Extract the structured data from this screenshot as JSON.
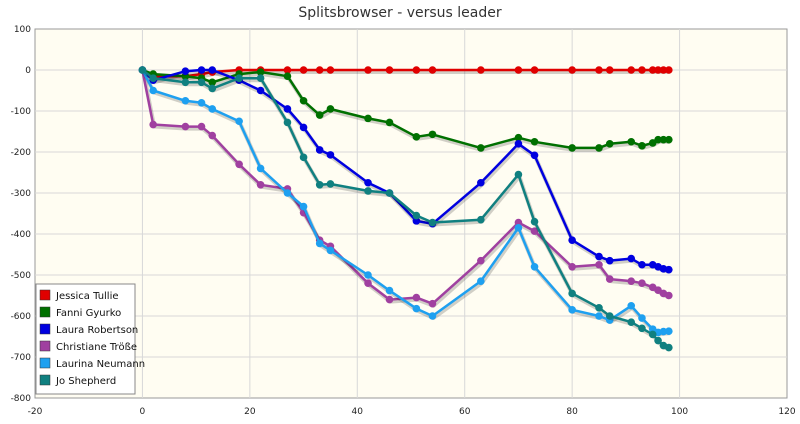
{
  "chart_data": {
    "type": "line",
    "title": "Splitsbrowser - versus leader",
    "xlabel": "",
    "ylabel": "",
    "xlim": [
      -20,
      120
    ],
    "ylim": [
      -800,
      100
    ],
    "x_ticks": [
      "-20",
      "0",
      "20",
      "40",
      "60",
      "80",
      "100",
      "120"
    ],
    "y_ticks": [
      "100",
      "0",
      "-100",
      "-200",
      "-300",
      "-400",
      "-500",
      "-600",
      "-700",
      "-800"
    ],
    "grid": true,
    "legend_position": "bottom-left",
    "series": [
      {
        "name": "Jessica Tullie",
        "color": "#e00000",
        "points": [
          [
            0,
            0
          ],
          [
            2,
            -15
          ],
          [
            8,
            -15
          ],
          [
            11,
            -10
          ],
          [
            13,
            -5
          ],
          [
            18,
            0
          ],
          [
            22,
            0
          ],
          [
            27,
            0
          ],
          [
            30,
            0
          ],
          [
            33,
            0
          ],
          [
            35,
            0
          ],
          [
            42,
            0
          ],
          [
            46,
            0
          ],
          [
            51,
            0
          ],
          [
            54,
            0
          ],
          [
            63,
            0
          ],
          [
            70,
            0
          ],
          [
            73,
            0
          ],
          [
            80,
            0
          ],
          [
            85,
            0
          ],
          [
            87,
            0
          ],
          [
            91,
            0
          ],
          [
            93,
            0
          ],
          [
            95,
            0
          ],
          [
            96,
            0
          ],
          [
            97,
            0
          ],
          [
            98,
            0
          ]
        ]
      },
      {
        "name": "Fanni Gyurko",
        "color": "#007000",
        "points": [
          [
            0,
            0
          ],
          [
            2,
            -10
          ],
          [
            8,
            -15
          ],
          [
            11,
            -20
          ],
          [
            13,
            -30
          ],
          [
            18,
            -10
          ],
          [
            22,
            -5
          ],
          [
            27,
            -15
          ],
          [
            30,
            -75
          ],
          [
            33,
            -110
          ],
          [
            35,
            -95
          ],
          [
            42,
            -118
          ],
          [
            46,
            -128
          ],
          [
            51,
            -163
          ],
          [
            54,
            -157
          ],
          [
            63,
            -190
          ],
          [
            70,
            -165
          ],
          [
            73,
            -175
          ],
          [
            80,
            -190
          ],
          [
            85,
            -190
          ],
          [
            87,
            -180
          ],
          [
            91,
            -175
          ],
          [
            93,
            -185
          ],
          [
            95,
            -178
          ],
          [
            96,
            -170
          ],
          [
            97,
            -170
          ],
          [
            98,
            -170
          ]
        ]
      },
      {
        "name": "Laura Robertson",
        "color": "#0000e0",
        "points": [
          [
            0,
            0
          ],
          [
            2,
            -25
          ],
          [
            8,
            -3
          ],
          [
            11,
            0
          ],
          [
            13,
            0
          ],
          [
            18,
            -25
          ],
          [
            22,
            -50
          ],
          [
            27,
            -95
          ],
          [
            30,
            -140
          ],
          [
            33,
            -195
          ],
          [
            35,
            -207
          ],
          [
            42,
            -275
          ],
          [
            46,
            -300
          ],
          [
            51,
            -368
          ],
          [
            54,
            -375
          ],
          [
            63,
            -275
          ],
          [
            70,
            -180
          ],
          [
            73,
            -208
          ],
          [
            80,
            -415
          ],
          [
            85,
            -455
          ],
          [
            87,
            -465
          ],
          [
            91,
            -460
          ],
          [
            93,
            -475
          ],
          [
            95,
            -475
          ],
          [
            96,
            -480
          ],
          [
            97,
            -485
          ],
          [
            98,
            -487
          ]
        ]
      },
      {
        "name": "Christiane Tröße",
        "color": "#a040a0",
        "points": [
          [
            0,
            0
          ],
          [
            2,
            -133
          ],
          [
            8,
            -138
          ],
          [
            11,
            -138
          ],
          [
            13,
            -160
          ],
          [
            18,
            -230
          ],
          [
            22,
            -280
          ],
          [
            27,
            -290
          ],
          [
            30,
            -348
          ],
          [
            33,
            -415
          ],
          [
            35,
            -430
          ],
          [
            42,
            -520
          ],
          [
            46,
            -560
          ],
          [
            51,
            -555
          ],
          [
            54,
            -570
          ],
          [
            63,
            -465
          ],
          [
            70,
            -372
          ],
          [
            73,
            -393
          ],
          [
            80,
            -480
          ],
          [
            85,
            -475
          ],
          [
            87,
            -510
          ],
          [
            91,
            -515
          ],
          [
            93,
            -520
          ],
          [
            95,
            -530
          ],
          [
            96,
            -537
          ],
          [
            97,
            -545
          ],
          [
            98,
            -550
          ]
        ]
      },
      {
        "name": "Laurina Neumann",
        "color": "#1ea0f0",
        "points": [
          [
            0,
            0
          ],
          [
            2,
            -50
          ],
          [
            8,
            -75
          ],
          [
            11,
            -80
          ],
          [
            13,
            -95
          ],
          [
            18,
            -125
          ],
          [
            22,
            -240
          ],
          [
            27,
            -300
          ],
          [
            30,
            -333
          ],
          [
            33,
            -423
          ],
          [
            35,
            -440
          ],
          [
            42,
            -500
          ],
          [
            46,
            -538
          ],
          [
            51,
            -582
          ],
          [
            54,
            -600
          ],
          [
            63,
            -515
          ],
          [
            70,
            -385
          ],
          [
            73,
            -480
          ],
          [
            80,
            -585
          ],
          [
            85,
            -600
          ],
          [
            87,
            -610
          ],
          [
            91,
            -575
          ],
          [
            93,
            -605
          ],
          [
            95,
            -632
          ],
          [
            96,
            -640
          ],
          [
            97,
            -638
          ],
          [
            98,
            -637
          ]
        ]
      },
      {
        "name": "Jo Shepherd",
        "color": "#108080",
        "points": [
          [
            0,
            0
          ],
          [
            2,
            -20
          ],
          [
            8,
            -30
          ],
          [
            11,
            -30
          ],
          [
            13,
            -45
          ],
          [
            18,
            -20
          ],
          [
            22,
            -20
          ],
          [
            27,
            -128
          ],
          [
            30,
            -213
          ],
          [
            33,
            -280
          ],
          [
            35,
            -278
          ],
          [
            42,
            -295
          ],
          [
            46,
            -300
          ],
          [
            51,
            -355
          ],
          [
            54,
            -372
          ],
          [
            63,
            -365
          ],
          [
            70,
            -255
          ],
          [
            73,
            -370
          ],
          [
            80,
            -545
          ],
          [
            85,
            -580
          ],
          [
            87,
            -600
          ],
          [
            91,
            -615
          ],
          [
            93,
            -630
          ],
          [
            95,
            -645
          ],
          [
            96,
            -660
          ],
          [
            97,
            -672
          ],
          [
            98,
            -677
          ]
        ]
      }
    ]
  }
}
